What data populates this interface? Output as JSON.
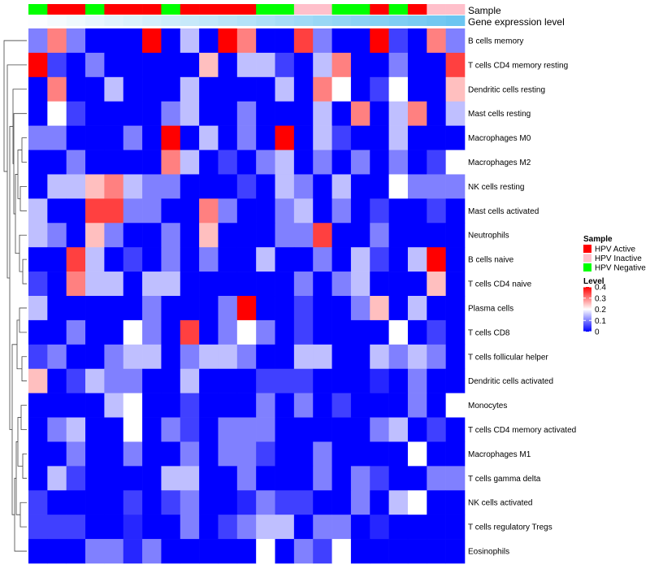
{
  "chart_data": {
    "type": "heatmap",
    "title": "",
    "tracks": {
      "sample_label": "Sample",
      "expression_label": "Gene expression level",
      "sample_groups": [
        "HPV Negative",
        "HPV Active",
        "HPV Active",
        "HPV Negative",
        "HPV Active",
        "HPV Active",
        "HPV Active",
        "HPV Negative",
        "HPV Active",
        "HPV Active",
        "HPV Active",
        "HPV Active",
        "HPV Negative",
        "HPV Negative",
        "HPV Inactive",
        "HPV Inactive",
        "HPV Negative",
        "HPV Negative",
        "HPV Active",
        "HPV Negative",
        "HPV Active",
        "HPV Inactive",
        "HPV Inactive"
      ],
      "expression_levels": [
        0.02,
        0.06,
        0.1,
        0.14,
        0.18,
        0.22,
        0.26,
        0.3,
        0.34,
        0.38,
        0.42,
        0.46,
        0.5,
        0.54,
        0.58,
        0.62,
        0.66,
        0.7,
        0.74,
        0.78,
        0.82,
        0.86,
        0.9
      ]
    },
    "rows": [
      "B cells memory",
      "T cells CD4 memory resting",
      "Dendritic cells resting",
      "Mast cells resting",
      "Macrophages M0",
      "Macrophages M2",
      "NK cells resting",
      "Mast cells activated",
      "Neutrophils",
      "B cells naive",
      "T cells CD4 naive",
      "Plasma cells",
      "T cells CD8",
      "T cells follicular helper",
      "Dendritic cells activated",
      "Monocytes",
      "T cells CD4 memory activated",
      "Macrophages M1",
      "T cells gamma delta",
      "NK cells activated",
      "T cells regulatory  Tregs",
      "Eosinophils"
    ],
    "values": [
      [
        0.1,
        0.3,
        0.1,
        0,
        0,
        0,
        0.4,
        0,
        0.15,
        0,
        0.4,
        0.3,
        0,
        0,
        0.35,
        0.1,
        0,
        0,
        0.4,
        0.05,
        0,
        0.3,
        0.1
      ],
      [
        0.4,
        0.05,
        0,
        0.1,
        0,
        0,
        0,
        0,
        0,
        0.25,
        0,
        0.15,
        0.15,
        0.05,
        0,
        0.15,
        0.3,
        0,
        0,
        0.1,
        0,
        0,
        0.35
      ],
      [
        0,
        0.3,
        0,
        0,
        0.15,
        0,
        0,
        0,
        0.15,
        0,
        0,
        0,
        0,
        0.15,
        0,
        0.3,
        0.2,
        0,
        0.05,
        0.2,
        0,
        0,
        0.25
      ],
      [
        0,
        0.2,
        0.05,
        0,
        0,
        0,
        0,
        0.1,
        0.15,
        0,
        0,
        0.1,
        0,
        0,
        0,
        0.15,
        0,
        0.3,
        0,
        0.15,
        0.3,
        0,
        0.15
      ],
      [
        0.1,
        0.1,
        0,
        0,
        0,
        0.1,
        0,
        0.4,
        0,
        0.15,
        0,
        0.1,
        0,
        0.4,
        0,
        0.15,
        0.05,
        0,
        0,
        0.15,
        0,
        0,
        0
      ],
      [
        0,
        0,
        0.1,
        0,
        0,
        0,
        0,
        0.3,
        0.15,
        0,
        0.05,
        0,
        0.1,
        0.15,
        0,
        0.1,
        0,
        0.1,
        0,
        0.1,
        0,
        0.05,
        0.2
      ],
      [
        0,
        0.15,
        0.15,
        0.25,
        0.3,
        0.15,
        0.1,
        0.1,
        0,
        0,
        0,
        0.05,
        0,
        0.15,
        0.1,
        0,
        0.15,
        0,
        0,
        0.2,
        0.1,
        0.1,
        0.1
      ],
      [
        0.15,
        0,
        0,
        0.35,
        0.35,
        0.1,
        0.1,
        0,
        0,
        0.3,
        0.1,
        0,
        0,
        0.1,
        0.15,
        0,
        0.1,
        0,
        0.05,
        0,
        0,
        0.05,
        0
      ],
      [
        0.15,
        0.1,
        0,
        0.25,
        0.1,
        0,
        0,
        0.1,
        0,
        0.25,
        0,
        0,
        0,
        0.1,
        0.1,
        0.35,
        0,
        0,
        0.1,
        0,
        0,
        0,
        0
      ],
      [
        0,
        0,
        0.35,
        0.15,
        0,
        0.05,
        0,
        0.1,
        0,
        0.1,
        0,
        0,
        0.15,
        0,
        0,
        0.1,
        0,
        0.15,
        0.05,
        0,
        0.15,
        0.4,
        0
      ],
      [
        0.05,
        0,
        0.3,
        0.15,
        0.15,
        0,
        0.15,
        0.15,
        0,
        0,
        0,
        0,
        0,
        0,
        0.1,
        0,
        0.1,
        0.15,
        0,
        0,
        0,
        0.25,
        0
      ],
      [
        0.15,
        0,
        0,
        0,
        0,
        0,
        0.1,
        0,
        0,
        0,
        0.1,
        0.4,
        0,
        0,
        0.05,
        0,
        0,
        0.1,
        0.25,
        0,
        0.15,
        0,
        0
      ],
      [
        0,
        0,
        0.1,
        0,
        0,
        0.2,
        0.1,
        0,
        0.35,
        0,
        0.1,
        0.2,
        0.1,
        0,
        0.05,
        0,
        0,
        0,
        0,
        0.2,
        0,
        0.05,
        0
      ],
      [
        0.05,
        0.1,
        0,
        0,
        0.1,
        0.15,
        0.15,
        0,
        0.1,
        0.15,
        0.15,
        0.1,
        0,
        0,
        0.15,
        0.15,
        0,
        0,
        0.15,
        0.1,
        0.15,
        0.1,
        0
      ],
      [
        0.25,
        0,
        0.05,
        0.15,
        0.1,
        0.1,
        0,
        0,
        0.15,
        0,
        0,
        0,
        0.05,
        0.05,
        0.05,
        0,
        0,
        0,
        0.03,
        0,
        0.1,
        0,
        0
      ],
      [
        0,
        0,
        0,
        0,
        0.15,
        0.2,
        0,
        0,
        0.05,
        0,
        0,
        0,
        0.1,
        0,
        0.1,
        0,
        0.05,
        0,
        0,
        0,
        0.1,
        0,
        0.2
      ],
      [
        0,
        0.1,
        0.15,
        0,
        0,
        0.2,
        0,
        0.1,
        0.05,
        0,
        0.1,
        0.1,
        0.1,
        0,
        0,
        0,
        0,
        0,
        0.1,
        0.15,
        0,
        0.05,
        0
      ],
      [
        0,
        0,
        0.1,
        0,
        0,
        0.1,
        0,
        0,
        0.1,
        0,
        0.1,
        0.1,
        0.05,
        0,
        0,
        0.1,
        0,
        0,
        0,
        0,
        0.2,
        0,
        0
      ],
      [
        0,
        0.15,
        0.05,
        0,
        0,
        0,
        0,
        0.15,
        0.15,
        0,
        0,
        0.1,
        0,
        0,
        0,
        0.1,
        0,
        0.1,
        0.05,
        0,
        0,
        0.1,
        0.1
      ],
      [
        0.05,
        0,
        0,
        0,
        0,
        0.05,
        0,
        0.05,
        0.1,
        0,
        0,
        0.03,
        0.1,
        0.05,
        0.05,
        0,
        0,
        0.1,
        0,
        0.15,
        0.2,
        0,
        0
      ],
      [
        0.05,
        0.05,
        0.05,
        0,
        0,
        0.03,
        0,
        0,
        0.1,
        0,
        0.05,
        0.1,
        0.15,
        0.15,
        0,
        0.1,
        0.1,
        0,
        0.03,
        0,
        0,
        0,
        0
      ],
      [
        0,
        0,
        0,
        0.1,
        0.1,
        0.03,
        0.1,
        0,
        0,
        0,
        0,
        0,
        0.2,
        0,
        0.1,
        0.05,
        0.2,
        0,
        0,
        0,
        0,
        0,
        0
      ]
    ],
    "legend_sample": {
      "title": "Sample",
      "entries": [
        {
          "label": "HPV Active",
          "color": "#ff0000"
        },
        {
          "label": "HPV Inactive",
          "color": "#ffc0cb"
        },
        {
          "label": "HPV Negative",
          "color": "#00ff00"
        }
      ]
    },
    "legend_level": {
      "title": "Level",
      "ticks": [
        {
          "value": 0.4,
          "label": "0.4"
        },
        {
          "value": 0.3,
          "label": "0.3"
        },
        {
          "value": 0.2,
          "label": "0.2"
        },
        {
          "value": 0.1,
          "label": "0.1"
        },
        {
          "value": 0.0,
          "label": "0"
        }
      ],
      "range": [
        0,
        0.4
      ],
      "colors": {
        "low": "#0000ff",
        "mid": "#ffffff",
        "high": "#ff0000",
        "mid_value": 0.2
      }
    },
    "expression_colors": {
      "low": "#ffffff",
      "high": "#5bbfef"
    }
  }
}
